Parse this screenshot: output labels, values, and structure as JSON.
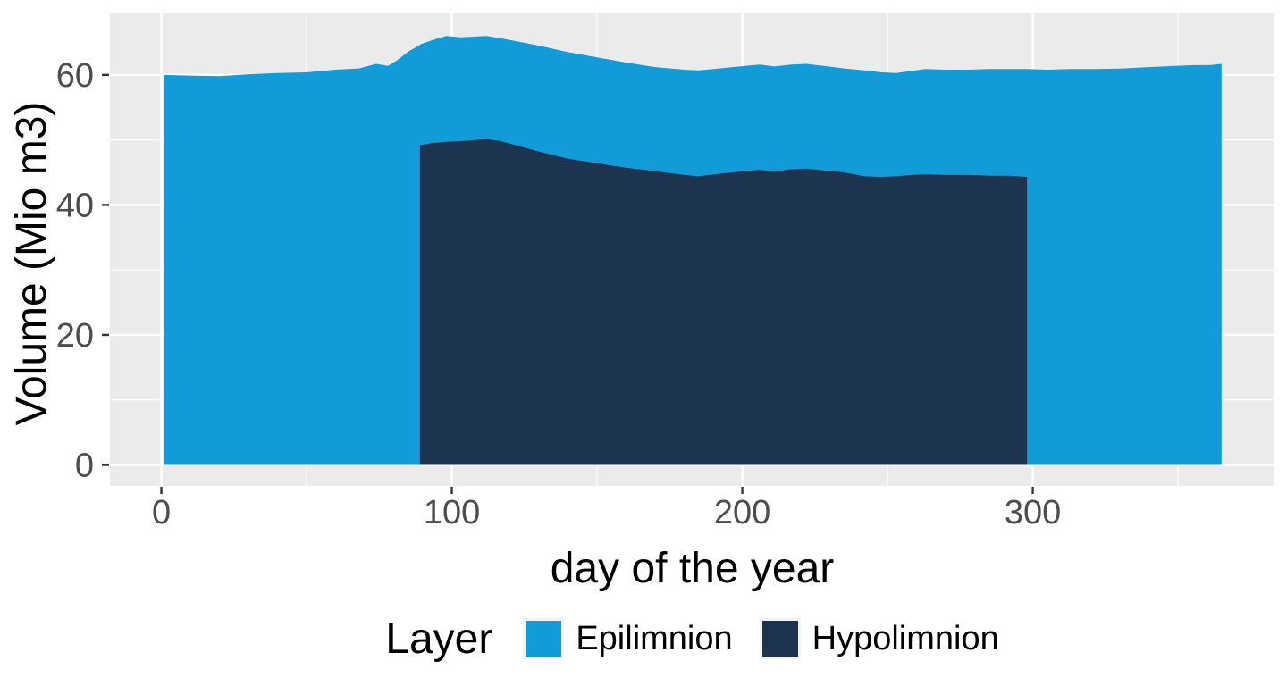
{
  "chart_data": {
    "type": "area",
    "stacked": true,
    "title": "",
    "xlabel": "day of the year",
    "ylabel": "Volume (Mio m3)",
    "xlim": [
      -17.7,
      383.2
    ],
    "ylim": [
      -3.23,
      69.6
    ],
    "grid": true,
    "panel_bg": "#ebebeb",
    "grid_color": "#ffffff",
    "tick_color": "#333333",
    "tick_label_color": "#4d4d4d",
    "x_ticks_major": [
      0,
      100,
      200,
      300
    ],
    "x_ticks_minor": [
      50,
      150,
      250,
      350
    ],
    "x_tick_labels": [
      "0",
      "100",
      "200",
      "300"
    ],
    "y_ticks_major": [
      0,
      20,
      40,
      60
    ],
    "y_ticks_minor": [
      10,
      30,
      50
    ],
    "y_tick_labels": [
      "0",
      "20",
      "40",
      "60"
    ],
    "x": [
      1,
      10,
      20,
      30,
      40,
      50,
      60,
      68,
      74,
      78,
      81,
      85,
      88.99,
      89,
      93,
      98,
      103,
      108,
      112,
      116,
      122,
      130,
      140,
      150,
      160,
      170,
      180,
      185,
      192,
      199,
      206,
      211,
      217,
      222,
      228,
      235,
      242,
      248,
      253,
      258,
      263,
      270,
      278,
      285,
      292,
      297.99,
      298,
      305,
      313,
      322,
      331,
      340,
      349,
      356,
      361,
      365
    ],
    "series": [
      {
        "name": "Hypolimnion",
        "color": "#1c3450",
        "values": [
          0,
          0,
          0,
          0,
          0,
          0,
          0,
          0,
          0,
          0,
          0,
          0,
          0,
          49.2,
          49.5,
          49.7,
          49.8,
          50.0,
          50.1,
          49.9,
          49.2,
          48.2,
          47.1,
          46.4,
          45.7,
          45.2,
          44.6,
          44.4,
          44.8,
          45.1,
          45.4,
          45.1,
          45.5,
          45.6,
          45.3,
          45.0,
          44.4,
          44.3,
          44.4,
          44.6,
          44.7,
          44.6,
          44.6,
          44.5,
          44.5,
          44.3,
          0,
          0,
          0,
          0,
          0,
          0,
          0,
          0,
          0,
          0
        ]
      },
      {
        "name": "Epilimnion",
        "color": "#119bd8",
        "values": [
          60.0,
          59.9,
          59.8,
          60.1,
          60.3,
          60.4,
          60.8,
          61.0,
          61.7,
          61.4,
          62.2,
          63.6,
          64.6,
          15.5,
          15.8,
          16.3,
          16.0,
          15.9,
          15.9,
          15.8,
          16.0,
          16.3,
          16.4,
          16.3,
          16.2,
          16.0,
          16.2,
          16.3,
          16.2,
          16.2,
          16.2,
          16.2,
          16.1,
          16.1,
          16.1,
          16.0,
          16.3,
          16.1,
          15.9,
          16.0,
          16.2,
          16.2,
          16.2,
          16.4,
          16.4,
          16.6,
          60.9,
          60.8,
          60.9,
          60.9,
          61.0,
          61.2,
          61.4,
          61.5,
          61.5,
          61.7
        ]
      }
    ],
    "legend": {
      "title": "Layer",
      "position": "bottom",
      "entries": [
        {
          "label": "Epilimnion",
          "color": "#119bd8"
        },
        {
          "label": "Hypolimnion",
          "color": "#1c3450"
        }
      ]
    }
  }
}
